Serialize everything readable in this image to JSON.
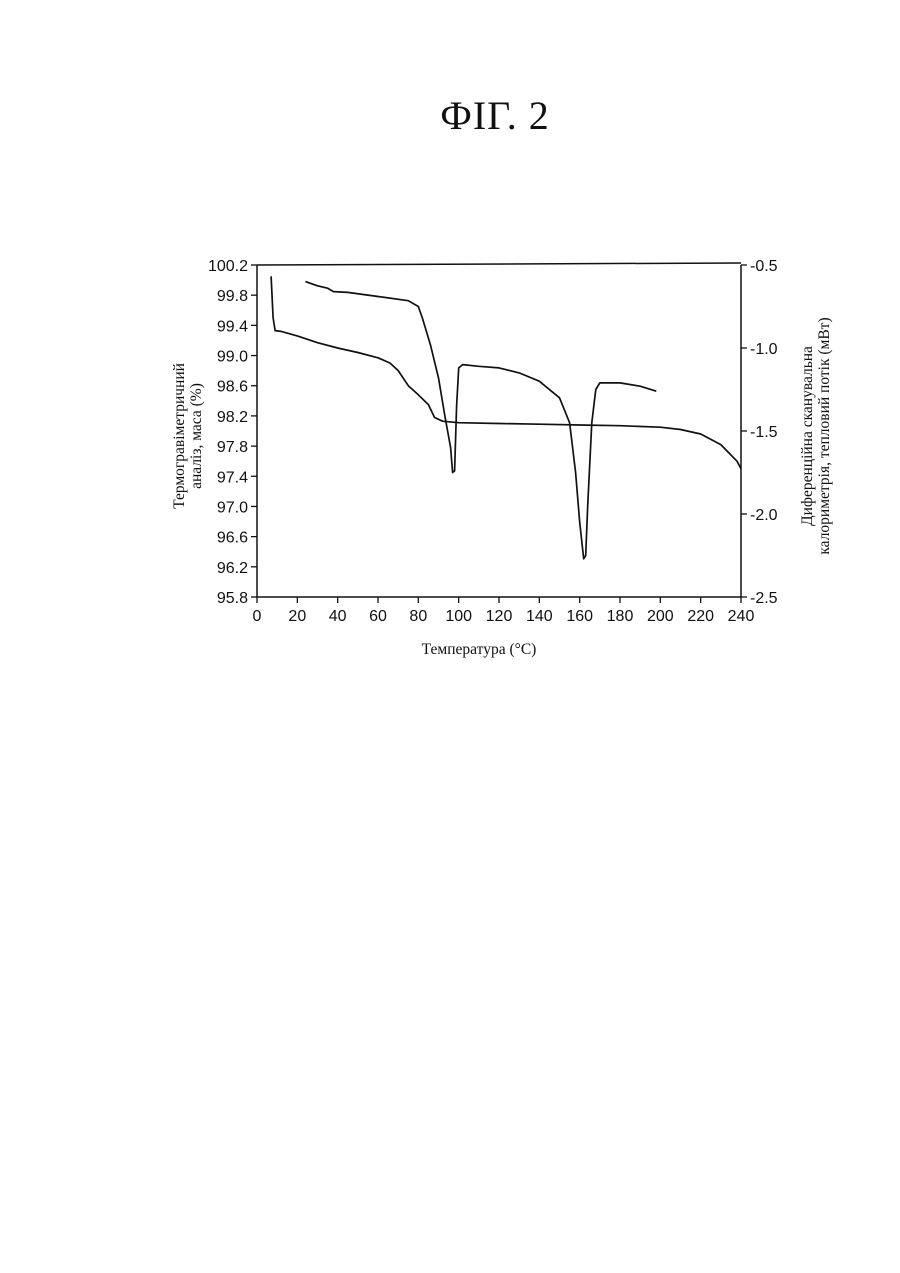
{
  "figure_title": "ФІГ. 2",
  "chart_data": {
    "type": "line",
    "title": "",
    "xlabel": "Температура (°C)",
    "ylabel_left": [
      "Термогравіметричний",
      "аналіз, маса (%)"
    ],
    "ylabel_right": [
      "Диференційна сканувальна",
      "калориметрія, тепловий потік (мВт)"
    ],
    "xlim": [
      0,
      240
    ],
    "ylim_left": [
      95.8,
      100.2
    ],
    "ylim_right": [
      -2.5,
      -0.5
    ],
    "x_ticks": [
      "0",
      "20",
      "40",
      "60",
      "80",
      "100",
      "120",
      "140",
      "160",
      "180",
      "200",
      "220",
      "240"
    ],
    "y_left_ticks": [
      "100.2",
      "99.8",
      "99.4",
      "99.0",
      "98.6",
      "98.2",
      "97.8",
      "97.4",
      "97.0",
      "96.6",
      "96.2",
      "95.8"
    ],
    "y_right_ticks": [
      "-0.5",
      "-1.0",
      "-1.5",
      "-2.0",
      "-2.5"
    ],
    "grid": false,
    "legend": "none",
    "series": [
      {
        "axis": "left",
        "points": [
          [
            7,
            100.05
          ],
          [
            8,
            99.5
          ],
          [
            9,
            99.33
          ],
          [
            12,
            99.32
          ],
          [
            20,
            99.26
          ],
          [
            30,
            99.17
          ],
          [
            40,
            99.1
          ],
          [
            50,
            99.04
          ],
          [
            60,
            98.97
          ],
          [
            66,
            98.9
          ],
          [
            70,
            98.8
          ],
          [
            75,
            98.6
          ],
          [
            80,
            98.48
          ],
          [
            85,
            98.35
          ],
          [
            88,
            98.18
          ],
          [
            92,
            98.13
          ],
          [
            100,
            98.11
          ],
          [
            120,
            98.1
          ],
          [
            140,
            98.09
          ],
          [
            160,
            98.08
          ],
          [
            180,
            98.07
          ],
          [
            200,
            98.05
          ],
          [
            210,
            98.02
          ],
          [
            220,
            97.96
          ],
          [
            230,
            97.82
          ],
          [
            238,
            97.6
          ],
          [
            240,
            97.5
          ]
        ]
      },
      {
        "axis": "right",
        "points": [
          [
            24,
            -0.6
          ],
          [
            30,
            -0.625
          ],
          [
            35,
            -0.64
          ],
          [
            38,
            -0.66
          ],
          [
            45,
            -0.665
          ],
          [
            60,
            -0.69
          ],
          [
            75,
            -0.715
          ],
          [
            80,
            -0.75
          ],
          [
            82,
            -0.82
          ],
          [
            86,
            -0.98
          ],
          [
            90,
            -1.18
          ],
          [
            93,
            -1.4
          ],
          [
            96,
            -1.6
          ],
          [
            97,
            -1.75
          ],
          [
            98,
            -1.74
          ],
          [
            99,
            -1.35
          ],
          [
            100,
            -1.12
          ],
          [
            102,
            -1.1
          ],
          [
            110,
            -1.11
          ],
          [
            120,
            -1.12
          ],
          [
            130,
            -1.15
          ],
          [
            140,
            -1.2
          ],
          [
            150,
            -1.3
          ],
          [
            155,
            -1.45
          ],
          [
            158,
            -1.75
          ],
          [
            160,
            -2.05
          ],
          [
            162,
            -2.27
          ],
          [
            163,
            -2.25
          ],
          [
            164,
            -1.95
          ],
          [
            166,
            -1.45
          ],
          [
            168,
            -1.25
          ],
          [
            170,
            -1.21
          ],
          [
            180,
            -1.21
          ],
          [
            190,
            -1.23
          ],
          [
            198,
            -1.26
          ]
        ]
      }
    ]
  }
}
